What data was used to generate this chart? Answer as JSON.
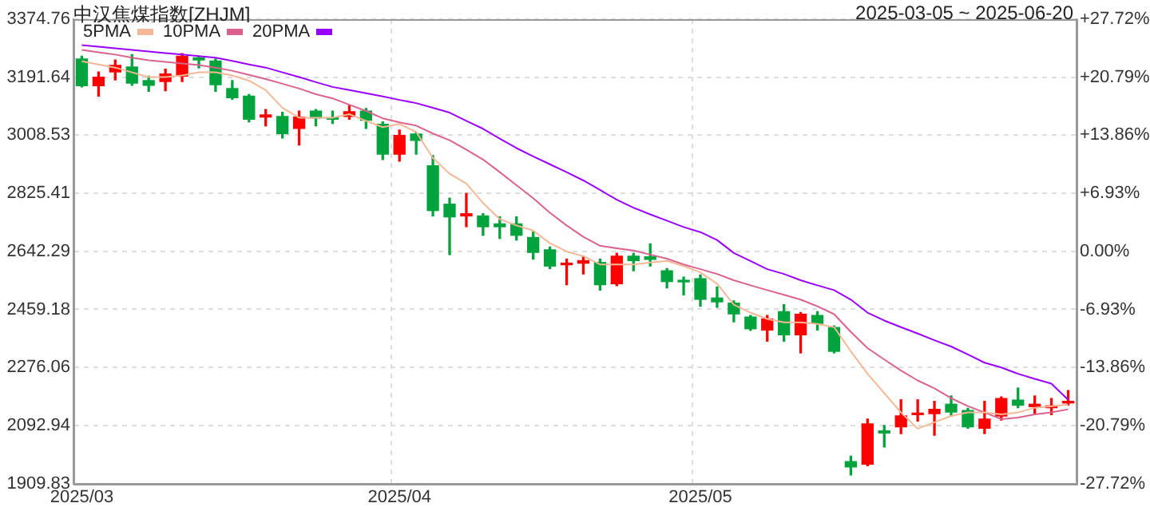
{
  "chart_data": {
    "type": "candlestick",
    "title": "中汉焦煤指数[ZHJM]",
    "subtitle": "2025-03-05 ~ 2025-06-20",
    "categories": [
      "2025/03",
      null,
      null,
      null,
      null,
      null,
      null,
      null,
      null,
      null,
      null,
      null,
      null,
      null,
      null,
      null,
      null,
      null,
      null,
      "2025/04",
      null,
      null,
      null,
      null,
      null,
      null,
      null,
      null,
      null,
      null,
      null,
      null,
      null,
      null,
      null,
      null,
      null,
      "2025/05",
      null,
      null,
      null,
      null,
      null,
      null,
      null,
      null,
      null,
      null,
      null,
      null,
      null,
      null,
      null,
      null,
      null,
      null,
      null,
      null,
      null,
      null
    ],
    "ohlc": [
      [
        3249,
        3258,
        3161,
        3165
      ],
      [
        3165,
        3208,
        3132,
        3192
      ],
      [
        3208,
        3246,
        3183,
        3229
      ],
      [
        3224,
        3263,
        3166,
        3173
      ],
      [
        3181,
        3195,
        3147,
        3166
      ],
      [
        3178,
        3217,
        3149,
        3202
      ],
      [
        3195,
        3266,
        3178,
        3258
      ],
      [
        3253,
        3258,
        3221,
        3246
      ],
      [
        3243,
        3249,
        3147,
        3168
      ],
      [
        3156,
        3181,
        3122,
        3127
      ],
      [
        3132,
        3137,
        3051,
        3059
      ],
      [
        3066,
        3090,
        3038,
        3073
      ],
      [
        3068,
        3081,
        3000,
        3014
      ],
      [
        3030,
        3085,
        2978,
        3066
      ],
      [
        3085,
        3090,
        3038,
        3063
      ],
      [
        3064,
        3085,
        3046,
        3059
      ],
      [
        3068,
        3102,
        3059,
        3083
      ],
      [
        3085,
        3093,
        3030,
        3056
      ],
      [
        3043,
        3051,
        2932,
        2949
      ],
      [
        2949,
        3025,
        2927,
        3008
      ],
      [
        3012,
        3017,
        2949,
        2992
      ],
      [
        2912,
        2944,
        2754,
        2771
      ],
      [
        2791,
        2810,
        2632,
        2751
      ],
      [
        2754,
        2825,
        2720,
        2761
      ],
      [
        2754,
        2761,
        2693,
        2720
      ],
      [
        2729,
        2751,
        2683,
        2720
      ],
      [
        2729,
        2751,
        2678,
        2693
      ],
      [
        2686,
        2703,
        2618,
        2639
      ],
      [
        2647,
        2656,
        2588,
        2596
      ],
      [
        2600,
        2618,
        2537,
        2605
      ],
      [
        2605,
        2627,
        2571,
        2613
      ],
      [
        2607,
        2618,
        2520,
        2537
      ],
      [
        2540,
        2636,
        2534,
        2627
      ],
      [
        2627,
        2636,
        2581,
        2613
      ],
      [
        2625,
        2666,
        2596,
        2617
      ],
      [
        2581,
        2588,
        2527,
        2547
      ],
      [
        2551,
        2561,
        2505,
        2546
      ],
      [
        2556,
        2568,
        2469,
        2491
      ],
      [
        2495,
        2530,
        2466,
        2483
      ],
      [
        2479,
        2486,
        2420,
        2445
      ],
      [
        2435,
        2440,
        2393,
        2398
      ],
      [
        2394,
        2440,
        2359,
        2429
      ],
      [
        2452,
        2474,
        2359,
        2379
      ],
      [
        2379,
        2449,
        2322,
        2444
      ],
      [
        2440,
        2452,
        2394,
        2415
      ],
      [
        2402,
        2407,
        2322,
        2327
      ],
      [
        1979,
        1996,
        1937,
        1962
      ],
      [
        1971,
        2113,
        1966,
        2098
      ],
      [
        2076,
        2093,
        2025,
        2069
      ],
      [
        2089,
        2174,
        2067,
        2123
      ],
      [
        2127,
        2174,
        2107,
        2132
      ],
      [
        2130,
        2169,
        2062,
        2144
      ],
      [
        2160,
        2186,
        2123,
        2135
      ],
      [
        2140,
        2147,
        2084,
        2089
      ],
      [
        2084,
        2169,
        2067,
        2113
      ],
      [
        2123,
        2183,
        2110,
        2178
      ],
      [
        2173,
        2211,
        2149,
        2157
      ],
      [
        2152,
        2186,
        2127,
        2160
      ],
      [
        2149,
        2178,
        2127,
        2155
      ],
      [
        2164,
        2203,
        2157,
        2169
      ]
    ],
    "colors": [
      "#00a33c",
      "#ff0000",
      "#ff0000",
      "#00a33c",
      "#00a33c",
      "#ff0000",
      "#ff0000",
      "#00a33c",
      "#00a33c",
      "#00a33c",
      "#00a33c",
      "#ff0000",
      "#00a33c",
      "#ff0000",
      "#00a33c",
      "#00a33c",
      "#ff0000",
      "#00a33c",
      "#00a33c",
      "#ff0000",
      "#00a33c",
      "#00a33c",
      "#00a33c",
      "#ff0000",
      "#00a33c",
      "#00a33c",
      "#00a33c",
      "#00a33c",
      "#00a33c",
      "#ff0000",
      "#ff0000",
      "#00a33c",
      "#ff0000",
      "#00a33c",
      "#00a33c",
      "#00a33c",
      "#00a33c",
      "#00a33c",
      "#00a33c",
      "#00a33c",
      "#00a33c",
      "#ff0000",
      "#00a33c",
      "#ff0000",
      "#00a33c",
      "#00a33c",
      "#00a33c",
      "#ff0000",
      "#00a33c",
      "#ff0000",
      "#ff0000",
      "#ff0000",
      "#00a33c",
      "#00a33c",
      "#ff0000",
      "#ff0000",
      "#00a33c",
      "#ff0000",
      "#ff0000",
      "#ff0000"
    ],
    "series": [
      {
        "name": "5PMA",
        "type": "line",
        "color": "#f5b896",
        "values": [
          3242,
          3232,
          3222,
          3207,
          3192,
          3192,
          3197,
          3207,
          3207,
          3197,
          3181,
          3151,
          3095,
          3064,
          3064,
          3064,
          3075,
          3054,
          3034,
          3044,
          3019,
          2937,
          2887,
          2856,
          2795,
          2744,
          2724,
          2708,
          2668,
          2642,
          2627,
          2601,
          2601,
          2601,
          2607,
          2612,
          2596,
          2576,
          2540,
          2474,
          2449,
          2429,
          2418,
          2418,
          2413,
          2403,
          2327,
          2256,
          2195,
          2134,
          2083,
          2103,
          2123,
          2134,
          2134,
          2128,
          2134,
          2149,
          2154,
          2159
        ]
      },
      {
        "name": "10PMA",
        "type": "line",
        "color": "#d9628e",
        "values": [
          3278,
          3270,
          3263,
          3253,
          3245,
          3240,
          3235,
          3230,
          3222,
          3212,
          3199,
          3186,
          3171,
          3156,
          3138,
          3125,
          3105,
          3085,
          3062,
          3049,
          3039,
          3014,
          2993,
          2963,
          2932,
          2892,
          2851,
          2810,
          2764,
          2724,
          2688,
          2660,
          2652,
          2645,
          2632,
          2619,
          2601,
          2586,
          2571,
          2551,
          2535,
          2520,
          2505,
          2490,
          2469,
          2444,
          2388,
          2337,
          2301,
          2266,
          2235,
          2210,
          2179,
          2154,
          2134,
          2113,
          2118,
          2128,
          2134,
          2144
        ]
      },
      {
        "name": "20PMA",
        "type": "line",
        "color": "#9900ff",
        "values": [
          3293,
          3288,
          3283,
          3278,
          3273,
          3268,
          3263,
          3258,
          3253,
          3243,
          3232,
          3222,
          3207,
          3192,
          3176,
          3161,
          3151,
          3141,
          3131,
          3120,
          3110,
          3095,
          3080,
          3054,
          3029,
          2998,
          2968,
          2942,
          2917,
          2892,
          2866,
          2836,
          2805,
          2780,
          2759,
          2739,
          2719,
          2703,
          2678,
          2637,
          2612,
          2586,
          2571,
          2551,
          2535,
          2520,
          2490,
          2449,
          2424,
          2403,
          2383,
          2362,
          2342,
          2317,
          2291,
          2276,
          2256,
          2240,
          2225,
          2174
        ]
      }
    ],
    "ylim": [
      1909.83,
      3374.76
    ],
    "yticks": [
      1909.83,
      2092.94,
      2276.06,
      2459.18,
      2642.29,
      2825.41,
      3008.53,
      3191.64,
      3374.76
    ],
    "y2lim": [
      -27.72,
      27.72
    ],
    "y2ticks": [
      {
        "value": -27.72,
        "label": "-27.72%"
      },
      {
        "value": -20.79,
        "label": "-20.79%"
      },
      {
        "value": -13.86,
        "label": "-13.86%"
      },
      {
        "value": -6.93,
        "label": "-6.93%"
      },
      {
        "value": 0,
        "label": "0.00%"
      },
      {
        "value": 6.93,
        "label": "+6.93%"
      },
      {
        "value": 13.86,
        "label": "+13.86%"
      },
      {
        "value": 20.79,
        "label": "+20.79%"
      },
      {
        "value": 27.72,
        "label": "+27.72%"
      }
    ],
    "grid": true,
    "legend": "top left"
  }
}
